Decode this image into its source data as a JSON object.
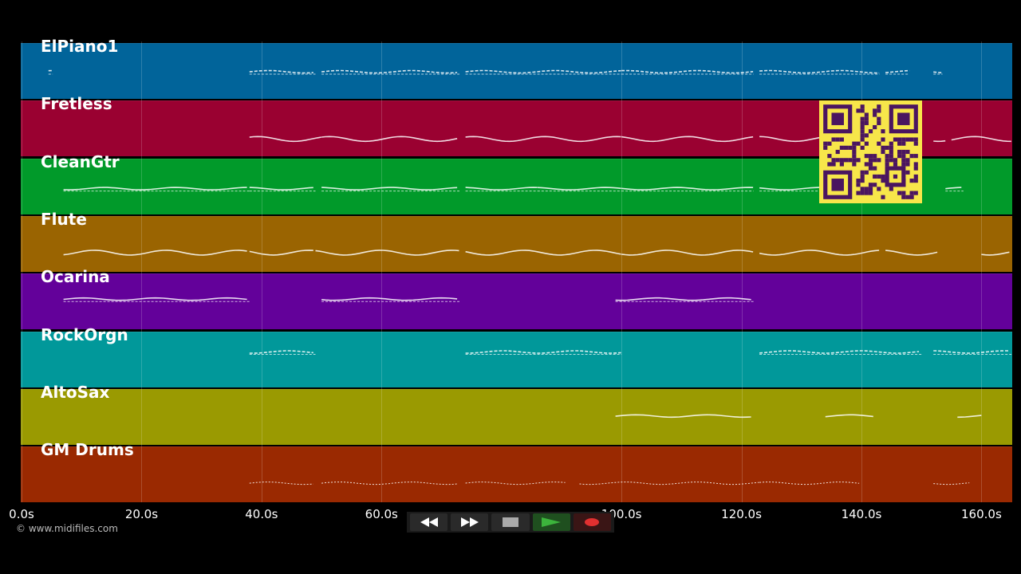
{
  "tracks": [
    {
      "name": "ElPiano1",
      "color": "#01649A"
    },
    {
      "name": "Fretless",
      "color": "#9A0131"
    },
    {
      "name": "CleanGtr",
      "color": "#019A2A"
    },
    {
      "name": "Flute",
      "color": "#9A6401"
    },
    {
      "name": "Ocarina",
      "color": "#63019A"
    },
    {
      "name": "RockOrgn",
      "color": "#01989A"
    },
    {
      "name": "AltoSax",
      "color": "#9A9A01"
    },
    {
      "name": "GM Drums",
      "color": "#9A2901"
    }
  ],
  "timeline": {
    "max_seconds": 165,
    "ticks": [
      {
        "seconds": 0,
        "label": "0.0s"
      },
      {
        "seconds": 20,
        "label": "20.0s"
      },
      {
        "seconds": 40,
        "label": "40.0s"
      },
      {
        "seconds": 60,
        "label": "60.0s"
      },
      {
        "seconds": 100,
        "label": "100.0s"
      },
      {
        "seconds": 120,
        "label": "120.0s"
      },
      {
        "seconds": 140,
        "label": "140.0s"
      },
      {
        "seconds": 160,
        "label": "160.0s"
      }
    ]
  },
  "copyright": "© www.midifiles.com",
  "transport": {
    "rewind": "rewind-icon",
    "fast_forward": "fast-forward-icon",
    "stop": "stop-icon",
    "play": "play-icon",
    "record": "record-icon",
    "play_color": "#3cb43c",
    "record_color": "#e03030"
  },
  "qr_code": {
    "color": "#f7e64a",
    "module_color": "#4a1560"
  },
  "note_activity": [
    {
      "track": "ElPiano1",
      "segments": [
        [
          4.5,
          5.2
        ],
        [
          38,
          49
        ],
        [
          50,
          73
        ],
        [
          74,
          100
        ],
        [
          100,
          122
        ],
        [
          123,
          143
        ],
        [
          144,
          148
        ],
        [
          152,
          153.5
        ]
      ]
    },
    {
      "track": "Fretless",
      "segments": [
        [
          38,
          50
        ],
        [
          50,
          73
        ],
        [
          74,
          100
        ],
        [
          100,
          122
        ],
        [
          123,
          133
        ],
        [
          152,
          154
        ],
        [
          155,
          165
        ]
      ]
    },
    {
      "track": "CleanGtr",
      "segments": [
        [
          7,
          38
        ],
        [
          38,
          49
        ],
        [
          50,
          73
        ],
        [
          74,
          86
        ],
        [
          86,
          100
        ],
        [
          100,
          122
        ],
        [
          123,
          133
        ],
        [
          154,
          157
        ]
      ]
    },
    {
      "track": "Flute",
      "segments": [
        [
          7,
          38
        ],
        [
          38,
          49
        ],
        [
          49,
          73
        ],
        [
          74,
          100
        ],
        [
          100,
          122
        ],
        [
          123,
          143
        ],
        [
          144,
          153
        ],
        [
          160,
          165
        ]
      ]
    },
    {
      "track": "Ocarina",
      "segments": [
        [
          7,
          38
        ],
        [
          50,
          73
        ],
        [
          99,
          122
        ]
      ]
    },
    {
      "track": "RockOrgn",
      "segments": [
        [
          38,
          49
        ],
        [
          74,
          100
        ],
        [
          123,
          150
        ],
        [
          152,
          165
        ]
      ]
    },
    {
      "track": "AltoSax",
      "segments": [
        [
          99,
          122
        ],
        [
          134,
          142
        ],
        [
          156,
          160
        ]
      ]
    },
    {
      "track": "GM Drums",
      "segments": [
        [
          38,
          49
        ],
        [
          50,
          73
        ],
        [
          74,
          91
        ],
        [
          93,
          123
        ],
        [
          123,
          140
        ],
        [
          152,
          158
        ]
      ]
    }
  ]
}
